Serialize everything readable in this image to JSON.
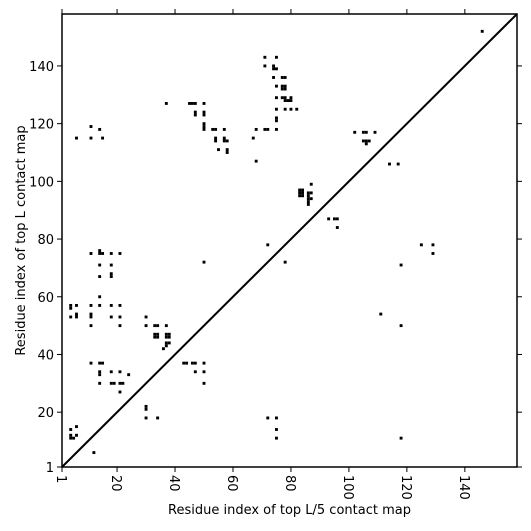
{
  "chart_data": {
    "type": "scatter",
    "title": "",
    "xlabel": "Residue index of top L/5 contact map",
    "ylabel": "Residue index of top L contact map",
    "xlim": [
      1,
      158
    ],
    "ylim": [
      1,
      158
    ],
    "x_ticks": [
      1,
      20,
      40,
      60,
      80,
      100,
      120,
      140
    ],
    "y_ticks": [
      1,
      20,
      40,
      60,
      80,
      100,
      120,
      140
    ],
    "x_tick_labels": [
      "1",
      "20",
      "40",
      "60",
      "80",
      "100",
      "120",
      "140"
    ],
    "y_tick_labels": [
      "1",
      "20",
      "40",
      "60",
      "80",
      "100",
      "120",
      "140"
    ],
    "diagonal": [
      [
        1,
        1
      ],
      [
        158,
        158
      ]
    ],
    "legend": "none",
    "grid": false,
    "marker_color": "#000000",
    "series": [
      {
        "values_upper_triangle": [
          [
            146,
            152
          ],
          [
            71,
            143
          ],
          [
            75,
            143
          ],
          [
            71,
            140
          ],
          [
            74,
            140
          ],
          [
            75,
            139
          ],
          [
            74,
            139
          ],
          [
            74,
            136
          ],
          [
            77,
            136
          ],
          [
            78,
            136
          ],
          [
            75,
            133
          ],
          [
            77,
            133
          ],
          [
            78,
            133
          ],
          [
            77,
            132
          ],
          [
            78,
            132
          ],
          [
            75,
            129
          ],
          [
            77,
            129
          ],
          [
            78,
            129
          ],
          [
            80,
            129
          ],
          [
            78,
            128
          ],
          [
            79,
            128
          ],
          [
            80,
            128
          ],
          [
            37,
            127
          ],
          [
            45,
            127
          ],
          [
            46,
            127
          ],
          [
            47,
            127
          ],
          [
            50,
            127
          ],
          [
            75,
            125
          ],
          [
            78,
            125
          ],
          [
            80,
            125
          ],
          [
            82,
            125
          ],
          [
            47,
            124
          ],
          [
            50,
            124
          ],
          [
            47,
            123
          ],
          [
            50,
            123
          ],
          [
            75,
            122
          ],
          [
            75,
            121
          ],
          [
            50,
            120
          ],
          [
            11,
            119
          ],
          [
            50,
            119
          ],
          [
            14,
            118
          ],
          [
            50,
            118
          ],
          [
            53,
            118
          ],
          [
            54,
            118
          ],
          [
            57,
            118
          ],
          [
            68,
            118
          ],
          [
            71,
            118
          ],
          [
            72,
            118
          ],
          [
            75,
            118
          ],
          [
            102,
            117
          ],
          [
            105,
            117
          ],
          [
            106,
            117
          ],
          [
            109,
            117
          ],
          [
            6,
            115
          ],
          [
            11,
            115
          ],
          [
            15,
            115
          ],
          [
            54,
            115
          ],
          [
            57,
            115
          ],
          [
            67,
            115
          ],
          [
            54,
            114
          ],
          [
            57,
            114
          ],
          [
            58,
            114
          ],
          [
            105,
            114
          ],
          [
            106,
            114
          ],
          [
            107,
            114
          ],
          [
            106,
            113
          ],
          [
            55,
            111
          ],
          [
            58,
            111
          ],
          [
            58,
            110
          ],
          [
            68,
            107
          ],
          [
            114,
            106
          ],
          [
            117,
            106
          ],
          [
            87,
            99
          ],
          [
            83,
            97
          ],
          [
            84,
            97
          ],
          [
            83,
            96
          ],
          [
            84,
            96
          ],
          [
            86,
            96
          ],
          [
            87,
            96
          ],
          [
            83,
            95
          ],
          [
            84,
            95
          ],
          [
            86,
            95
          ],
          [
            86,
            94
          ],
          [
            87,
            94
          ],
          [
            86,
            93
          ],
          [
            86,
            92
          ],
          [
            93,
            87
          ],
          [
            95,
            87
          ],
          [
            96,
            87
          ],
          [
            96,
            84
          ]
        ],
        "values_lower_triangle": [
          [
            72,
            78
          ],
          [
            125,
            78
          ],
          [
            129,
            78
          ],
          [
            11,
            75
          ],
          [
            14,
            75
          ],
          [
            15,
            75
          ],
          [
            18,
            75
          ],
          [
            21,
            75
          ],
          [
            129,
            75
          ],
          [
            14,
            76
          ],
          [
            50,
            72
          ],
          [
            78,
            72
          ],
          [
            14,
            71
          ],
          [
            18,
            71
          ],
          [
            118,
            71
          ],
          [
            18,
            68
          ],
          [
            14,
            67
          ],
          [
            18,
            67
          ],
          [
            14,
            60
          ],
          [
            4,
            57
          ],
          [
            6,
            57
          ],
          [
            11,
            57
          ],
          [
            14,
            57
          ],
          [
            18,
            57
          ],
          [
            21,
            57
          ],
          [
            4,
            56
          ],
          [
            11,
            54
          ],
          [
            6,
            54
          ],
          [
            4,
            53
          ],
          [
            6,
            53
          ],
          [
            11,
            53
          ],
          [
            18,
            53
          ],
          [
            21,
            53
          ],
          [
            30,
            53
          ],
          [
            11,
            50
          ],
          [
            21,
            50
          ],
          [
            30,
            50
          ],
          [
            33,
            50
          ],
          [
            34,
            50
          ],
          [
            37,
            50
          ],
          [
            111,
            54
          ],
          [
            118,
            50
          ],
          [
            33,
            47
          ],
          [
            34,
            47
          ],
          [
            37,
            47
          ],
          [
            38,
            47
          ],
          [
            33,
            46
          ],
          [
            34,
            46
          ],
          [
            37,
            46
          ],
          [
            38,
            46
          ],
          [
            37,
            44
          ],
          [
            38,
            44
          ],
          [
            37,
            43
          ],
          [
            36,
            42
          ],
          [
            11,
            37
          ],
          [
            14,
            37
          ],
          [
            15,
            37
          ],
          [
            43,
            37
          ],
          [
            44,
            37
          ],
          [
            46,
            37
          ],
          [
            47,
            37
          ],
          [
            50,
            37
          ],
          [
            14,
            34
          ],
          [
            18,
            34
          ],
          [
            21,
            34
          ],
          [
            47,
            34
          ],
          [
            50,
            34
          ],
          [
            14,
            33
          ],
          [
            24,
            33
          ],
          [
            14,
            30
          ],
          [
            18,
            30
          ],
          [
            19,
            30
          ],
          [
            21,
            30
          ],
          [
            22,
            30
          ],
          [
            50,
            30
          ],
          [
            21,
            27
          ],
          [
            30,
            22
          ],
          [
            30,
            21
          ],
          [
            30,
            18
          ],
          [
            34,
            18
          ],
          [
            72,
            18
          ],
          [
            75,
            18
          ],
          [
            4,
            14
          ],
          [
            6,
            15
          ],
          [
            75,
            14
          ],
          [
            4,
            12
          ],
          [
            6,
            12
          ],
          [
            4,
            11
          ],
          [
            5,
            11
          ],
          [
            75,
            11
          ],
          [
            118,
            11
          ],
          [
            12,
            6
          ]
        ]
      }
    ]
  }
}
